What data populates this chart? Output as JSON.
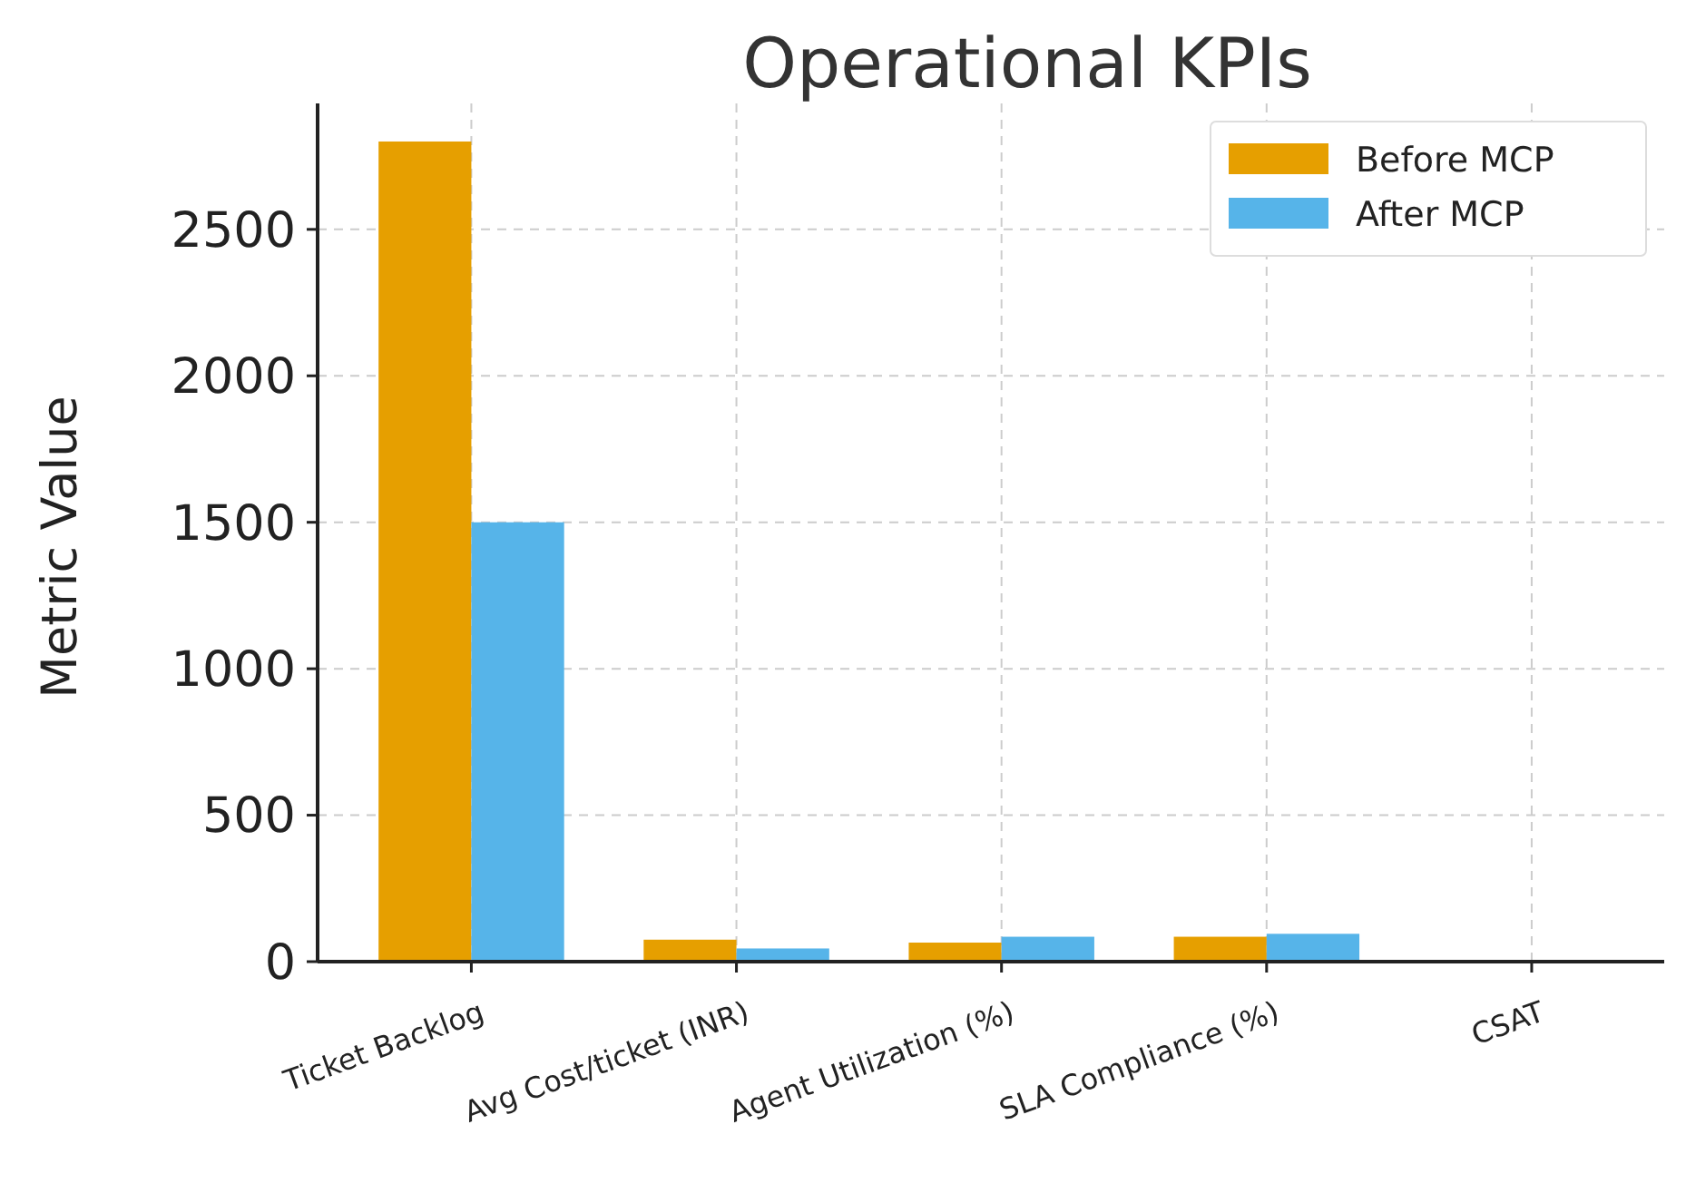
{
  "chart_data": {
    "type": "bar",
    "title": "Operational KPIs",
    "ylabel": "Metric Value",
    "categories": [
      "Ticket Backlog",
      "Avg Cost/ticket (INR)",
      "Agent Utilization (%)",
      "SLA Compliance (%)",
      "CSAT"
    ],
    "series": [
      {
        "name": "Before MCP",
        "color": "#e69f00",
        "values": [
          2800,
          75,
          65,
          85,
          null
        ]
      },
      {
        "name": "After MCP",
        "color": "#56b4e9",
        "values": [
          1500,
          45,
          85,
          95,
          null
        ]
      }
    ],
    "ylim": [
      0,
      2930
    ],
    "yticks": [
      0,
      500,
      1000,
      1500,
      2000,
      2500
    ],
    "grid": true,
    "legend": "top right"
  }
}
